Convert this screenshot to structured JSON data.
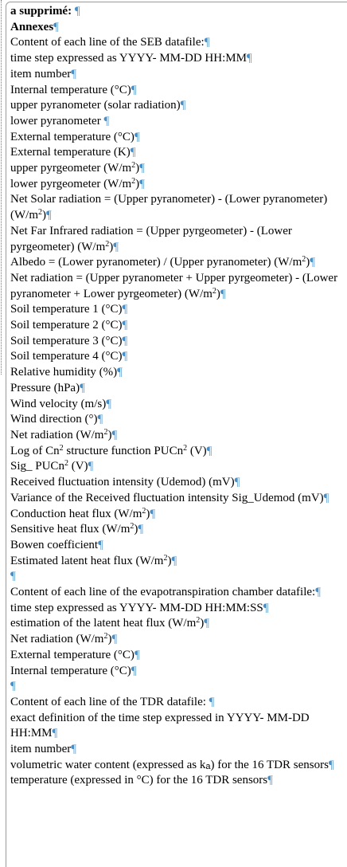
{
  "header": {
    "label": "a supprimé: ",
    "heading": "Annexes"
  },
  "mark": "¶",
  "paragraphs": [
    [
      "Content of each line of the SEB datafile:"
    ],
    [
      "time step expressed as YYYY- MM-DD HH:MM"
    ],
    [
      "item number"
    ],
    [
      "Internal temperature (°C)"
    ],
    [
      "upper pyranometer (solar radiation)"
    ],
    [
      "lower pyranometer "
    ],
    [
      "External temperature (°C)"
    ],
    [
      "External temperature (K)"
    ],
    [
      "upper pyrgeometer (W/m",
      {
        "sup": "2"
      },
      ")"
    ],
    [
      "lower pyrgeometer (W/m",
      {
        "sup": "2"
      },
      ")"
    ],
    [
      "Net Solar radiation = (Upper pyranometer) - (Lower pyranometer) (W/m",
      {
        "sup": "2"
      },
      ")"
    ],
    [
      "Net Far Infrared radiation = (Upper pyrgeometer) - (Lower pyrgeometer) (W/m",
      {
        "sup": "2"
      },
      ")"
    ],
    [
      "Albedo = (Lower pyranometer) / (Upper pyranometer) (W/m",
      {
        "sup": "2"
      },
      ")"
    ],
    [
      "Net radiation = (Upper pyranometer + Upper pyrgeometer) - (Lower pyranometer + Lower pyrgeometer) (W/m",
      {
        "sup": "2"
      },
      ")"
    ],
    [
      "Soil temperature 1 (°C)"
    ],
    [
      "Soil temperature 2 (°C)"
    ],
    [
      "Soil temperature 3 (°C)"
    ],
    [
      "Soil temperature 4 (°C)"
    ],
    [
      "Relative humidity (%)"
    ],
    [
      "Pressure (hPa)"
    ],
    [
      "Wind velocity (m/s)"
    ],
    [
      "Wind direction (°)"
    ],
    [
      "Net radiation (W/m",
      {
        "sup": "2"
      },
      ")"
    ],
    [
      "Log of Cn",
      {
        "sup": "2"
      },
      " structure function PUCn",
      {
        "sup": "2"
      },
      " (V)"
    ],
    [
      "Sig_ PUCn",
      {
        "sup": "2"
      },
      " (V)"
    ],
    [
      "Received fluctuation intensity (Udemod) (mV)"
    ],
    [
      "Variance of the Received fluctuation intensity Sig_Udemod (mV)"
    ],
    [
      "Conduction heat flux (W/m",
      {
        "sup": "2"
      },
      ")"
    ],
    [
      "Sensitive heat flux (W/m",
      {
        "sup": "2"
      },
      ")"
    ],
    [
      "Bowen coefficient"
    ],
    [
      "Estimated latent heat flux (W/m",
      {
        "sup": "2"
      },
      ")"
    ],
    [],
    [
      "Content of each line of the evapotranspiration chamber datafile:"
    ],
    [
      "time step expressed as YYYY- MM-DD HH:MM:SS"
    ],
    [
      "estimation of the latent heat flux (W/m",
      {
        "sup": "2"
      },
      ")"
    ],
    [
      "Net radiation (W/m",
      {
        "sup": "2"
      },
      ")"
    ],
    [
      "External temperature (°C)"
    ],
    [
      "Internal temperature (°C)"
    ],
    [],
    [
      "Content of each line of the TDR datafile: "
    ],
    [
      "exact definition of the time step expressed in YYYY- MM-DD HH:MM"
    ],
    [
      "item number"
    ],
    [
      "volumetric water content (expressed as k",
      {
        "sub": "a"
      },
      ") for the 16 TDR sensors"
    ],
    [
      "temperature (expressed in °C) for the 16 TDR sensors"
    ]
  ]
}
